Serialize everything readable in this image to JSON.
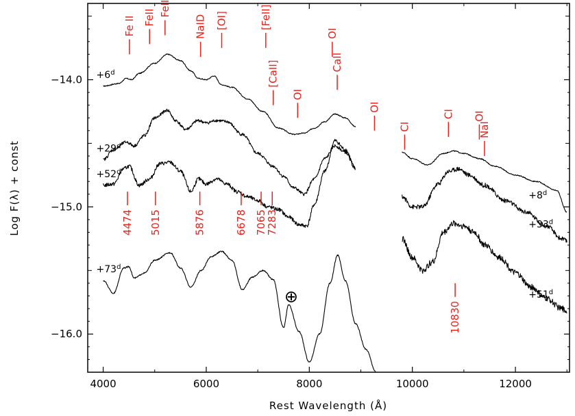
{
  "chart_data": {
    "type": "line",
    "xlabel": "Rest Wavelength (Å)",
    "ylabel": "Log F(λ) +  const",
    "xlim": [
      3700,
      13050
    ],
    "ylim": [
      -16.3,
      -13.4
    ],
    "xticks": [
      4000,
      6000,
      8000,
      10000,
      12000
    ],
    "xtick_labels": [
      "4000",
      "6000",
      "8000",
      "10000",
      "12000"
    ],
    "yticks": [
      -14.0,
      -15.0,
      -16.0
    ],
    "ytick_labels": [
      "−14.0",
      "−15.0",
      "−16.0"
    ],
    "grid": false,
    "colors": {
      "spectra": "#000000",
      "annotations": "#e8231b"
    },
    "series": [
      {
        "name": "+6d",
        "noise": 0.004,
        "x": [
          4000,
          4300,
          4450,
          4550,
          4700,
          5000,
          5250,
          5500,
          5700,
          5850,
          6000,
          6150,
          6300,
          6500,
          6800,
          7100,
          7400,
          7700,
          7900,
          8100,
          8300,
          8500,
          8700,
          8900
        ],
        "values": [
          -14.05,
          -14.03,
          -13.99,
          -14.0,
          -13.95,
          -13.87,
          -13.8,
          -13.85,
          -13.93,
          -13.99,
          -14.0,
          -13.97,
          -14.04,
          -14.06,
          -14.15,
          -14.25,
          -14.38,
          -14.43,
          -14.42,
          -14.38,
          -14.33,
          -14.27,
          -14.3,
          -14.37
        ]
      },
      {
        "name": "+8d",
        "noise": 0.004,
        "x": [
          9800,
          10000,
          10300,
          10600,
          10800,
          11000,
          11300,
          11600,
          12000,
          12400,
          12800,
          13000
        ],
        "values": [
          -14.57,
          -14.62,
          -14.67,
          -14.58,
          -14.56,
          -14.58,
          -14.62,
          -14.68,
          -14.75,
          -14.8,
          -14.87,
          -15.04
        ]
      },
      {
        "name": "+29d",
        "noise": 0.012,
        "x": [
          4000,
          4200,
          4450,
          4600,
          4800,
          5000,
          5250,
          5400,
          5600,
          5850,
          6000,
          6200,
          6400,
          6700,
          7000,
          7300,
          7500,
          7700,
          7900,
          8100,
          8300,
          8500,
          8700,
          8900
        ],
        "values": [
          -14.63,
          -14.55,
          -14.49,
          -14.52,
          -14.44,
          -14.3,
          -14.24,
          -14.32,
          -14.39,
          -14.32,
          -14.34,
          -14.32,
          -14.33,
          -14.43,
          -14.58,
          -14.68,
          -14.76,
          -14.85,
          -14.9,
          -14.78,
          -14.62,
          -14.52,
          -14.57,
          -14.7
        ]
      },
      {
        "name": "+33d",
        "noise": 0.018,
        "x": [
          9800,
          10000,
          10200,
          10500,
          10700,
          10900,
          11100,
          11400,
          11800,
          12200,
          12600,
          12900,
          13000
        ],
        "values": [
          -14.92,
          -15.0,
          -15.0,
          -14.82,
          -14.72,
          -14.7,
          -14.75,
          -14.83,
          -14.95,
          -15.04,
          -15.15,
          -15.25,
          -15.27
        ]
      },
      {
        "name": "+52d",
        "noise": 0.015,
        "x": [
          4000,
          4200,
          4400,
          4500,
          4700,
          4900,
          5100,
          5300,
          5500,
          5700,
          5850,
          6000,
          6200,
          6400,
          6600,
          6800,
          7000,
          7200,
          7400,
          7600,
          7800,
          7950,
          8100,
          8300,
          8500,
          8700,
          8900
        ],
        "values": [
          -14.83,
          -14.82,
          -14.7,
          -14.68,
          -14.83,
          -14.78,
          -14.66,
          -14.65,
          -14.72,
          -14.88,
          -14.78,
          -14.82,
          -14.78,
          -14.82,
          -14.88,
          -14.92,
          -14.95,
          -15.0,
          -15.02,
          -15.08,
          -15.14,
          -15.15,
          -14.98,
          -14.72,
          -14.48,
          -14.55,
          -14.7
        ]
      },
      {
        "name": "+51d",
        "noise": 0.024,
        "x": [
          9800,
          10000,
          10200,
          10400,
          10600,
          10800,
          11000,
          11200,
          11400,
          11700,
          12000,
          12300,
          12600,
          12900,
          13000
        ],
        "values": [
          -15.25,
          -15.4,
          -15.5,
          -15.43,
          -15.2,
          -15.13,
          -15.15,
          -15.2,
          -15.3,
          -15.4,
          -15.52,
          -15.63,
          -15.72,
          -15.8,
          -15.82
        ]
      },
      {
        "name": "+73d",
        "noise": 0.005,
        "x": [
          4000,
          4200,
          4400,
          4500,
          4600,
          4800,
          5000,
          5300,
          5500,
          5700,
          5900,
          6100,
          6300,
          6500,
          6700,
          6900,
          7100,
          7300,
          7500,
          7600,
          7800,
          8000,
          8200,
          8400,
          8550,
          8700,
          8900,
          9100,
          9300
        ],
        "values": [
          -15.58,
          -15.68,
          -15.48,
          -15.47,
          -15.56,
          -15.52,
          -15.42,
          -15.36,
          -15.48,
          -15.63,
          -15.5,
          -15.39,
          -15.35,
          -15.42,
          -15.65,
          -15.55,
          -15.5,
          -15.57,
          -15.95,
          -15.77,
          -15.98,
          -16.22,
          -16.0,
          -15.6,
          -15.38,
          -15.58,
          -15.92,
          -16.12,
          -16.3
        ]
      }
    ],
    "epoch_labels": [
      {
        "series": "+6d",
        "number": "+6",
        "sup": "d"
      },
      {
        "series": "+29d",
        "number": "+29",
        "sup": "d"
      },
      {
        "series": "+52d",
        "number": "+52",
        "sup": "d"
      },
      {
        "series": "+73d",
        "number": "+73",
        "sup": "d"
      },
      {
        "series": "+8d",
        "number": "+8",
        "sup": "d"
      },
      {
        "series": "+33d",
        "number": "+33",
        "sup": "d"
      },
      {
        "series": "+51d",
        "number": "+51",
        "sup": "d"
      }
    ],
    "line_ids": [
      {
        "label": "Fe II",
        "x": 4510,
        "y": -13.8
      },
      {
        "label": "FeII",
        "x": 4900,
        "y": -13.72
      },
      {
        "label": "FeII",
        "x": 5200,
        "y": -13.65
      },
      {
        "label": "NaID",
        "x": 5890,
        "y": -13.82
      },
      {
        "label": "[OI]",
        "x": 6300,
        "y": -13.75
      },
      {
        "label": "[CaII]",
        "x": 7300,
        "y": -14.2
      },
      {
        "label": "[FeII]",
        "x": 7155,
        "y": -13.75
      },
      {
        "label": "OI",
        "x": 7774,
        "y": -14.3
      },
      {
        "label": "CaII",
        "x": 8542,
        "y": -14.08
      },
      {
        "label": "OI",
        "x": 8446,
        "y": -13.82
      },
      {
        "label": "OI",
        "x": 9265,
        "y": -14.4
      },
      {
        "label": "CI",
        "x": 9850,
        "y": -14.55
      },
      {
        "label": "CI",
        "x": 10700,
        "y": -14.45
      },
      {
        "label": "OI",
        "x": 11300,
        "y": -14.47
      },
      {
        "label": "NaI",
        "x": 11400,
        "y": -14.6
      }
    ],
    "he_lines": [
      {
        "label": "4474",
        "x": 4471
      },
      {
        "label": "5015",
        "x": 5015
      },
      {
        "label": "5876",
        "x": 5876
      },
      {
        "label": "6678",
        "x": 6678
      },
      {
        "label": "7065",
        "x": 7065
      },
      {
        "label": "7283",
        "x": 7281
      },
      {
        "label": "10830",
        "x": 10830
      }
    ],
    "telluric": {
      "symbol": "⊕",
      "x": 7650,
      "y": -15.7
    }
  }
}
